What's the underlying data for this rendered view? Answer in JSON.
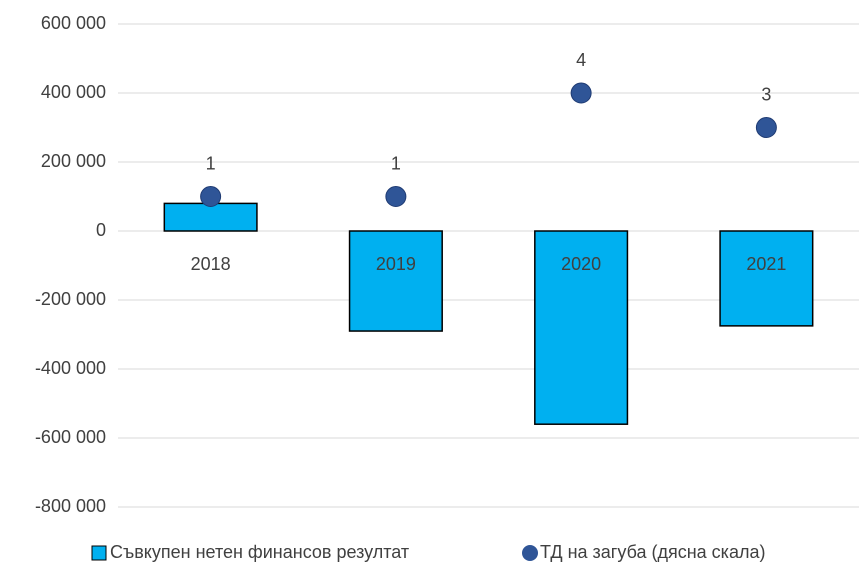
{
  "chart_data": {
    "type": "bar",
    "categories": [
      "2018",
      "2019",
      "2020",
      "2021"
    ],
    "series": [
      {
        "name": "Съвкупен нетен финансов резултат",
        "type": "bar",
        "color": "#00b0f0",
        "values": [
          80000,
          -290000,
          -560000,
          -275000
        ]
      },
      {
        "name": "ТД на загуба (дясна скала)",
        "type": "scatter",
        "axis": "y2",
        "color": "#2f5597",
        "values": [
          1,
          1,
          4,
          3
        ]
      }
    ],
    "ylim": [
      -800000,
      600000
    ],
    "yticks": [
      {
        "value": -800000,
        "label": "-800 000"
      },
      {
        "value": -600000,
        "label": "-600 000"
      },
      {
        "value": -400000,
        "label": "-400 000"
      },
      {
        "value": -200000,
        "label": "-200 000"
      },
      0,
      {
        "value": 200000,
        "label": "200 000"
      },
      {
        "value": 400000,
        "label": "400 000"
      },
      {
        "value": 600000,
        "label": "600 000"
      }
    ],
    "y2lim": [
      -8,
      6
    ],
    "grid": true,
    "legend": "bottom"
  }
}
